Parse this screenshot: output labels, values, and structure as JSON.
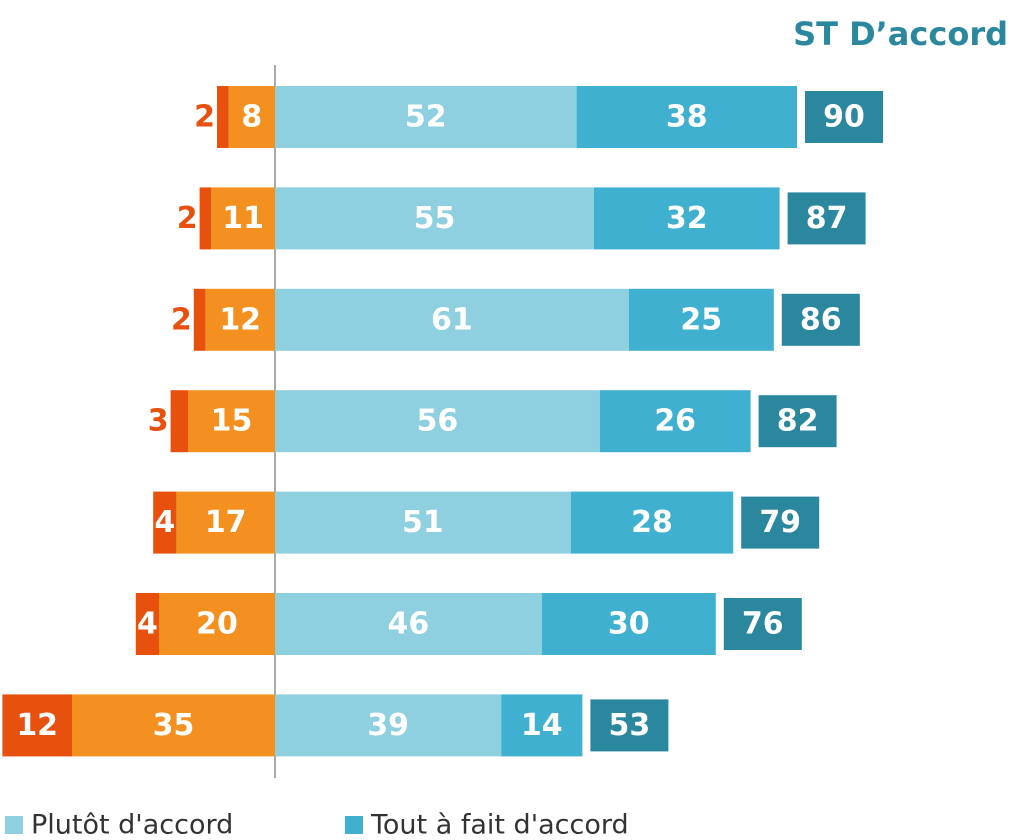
{
  "chart_data": {
    "type": "diverging-bar",
    "series": [
      {
        "color": "#e8500e",
        "side": "left",
        "values": [
          2,
          2,
          2,
          3,
          4,
          4,
          12
        ]
      },
      {
        "color": "#f39020",
        "side": "left",
        "values": [
          8,
          11,
          12,
          15,
          17,
          20,
          35
        ]
      },
      {
        "name": "Plutôt d'accord",
        "color": "#8ecfe0",
        "side": "right",
        "values": [
          52,
          55,
          61,
          56,
          51,
          46,
          39
        ]
      },
      {
        "name": "Tout à fait d'accord",
        "color": "#3fb0cf",
        "side": "right",
        "values": [
          38,
          32,
          25,
          26,
          28,
          30,
          14
        ]
      }
    ],
    "totals": {
      "name": "ST D’accord",
      "color": "#2a879e",
      "values": [
        90,
        87,
        86,
        82,
        79,
        76,
        53
      ]
    }
  }
}
